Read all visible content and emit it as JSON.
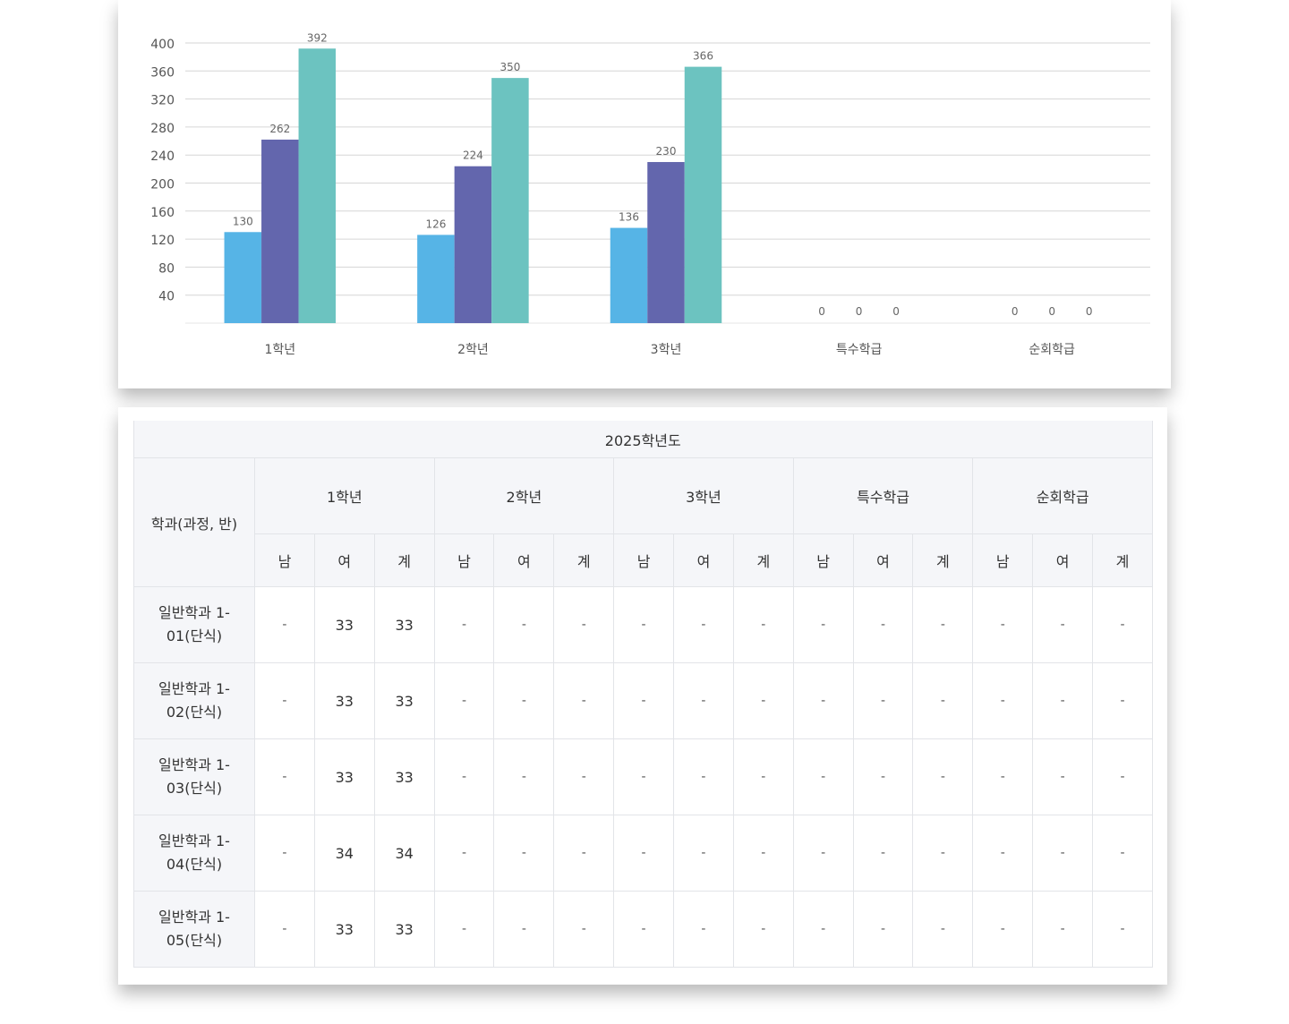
{
  "chart_data": {
    "type": "bar",
    "categories": [
      "1학년",
      "2학년",
      "3학년",
      "특수학급",
      "순회학급"
    ],
    "series": [
      {
        "values": [
          130,
          126,
          136,
          0,
          0
        ],
        "color": "#56b4e6"
      },
      {
        "values": [
          262,
          224,
          230,
          0,
          0
        ],
        "color": "#6366ad"
      },
      {
        "values": [
          392,
          350,
          366,
          0,
          0
        ],
        "color": "#6cc3c0"
      }
    ],
    "yticks": [
      40,
      80,
      120,
      160,
      200,
      240,
      280,
      320,
      360,
      400
    ],
    "ylim": [
      0,
      400
    ],
    "grid": true,
    "data_labels": true
  },
  "table": {
    "year": "2025학년도",
    "rowhead_label": "학과(과정, 반)",
    "groups": [
      "1학년",
      "2학년",
      "3학년",
      "특수학급",
      "순회학급"
    ],
    "genders": [
      "남",
      "여",
      "계"
    ],
    "rows": [
      {
        "name": "일반학과 1-01(단식)",
        "cells": [
          "-",
          "33",
          "33",
          "-",
          "-",
          "-",
          "-",
          "-",
          "-",
          "-",
          "-",
          "-",
          "-",
          "-",
          "-"
        ]
      },
      {
        "name": "일반학과 1-02(단식)",
        "cells": [
          "-",
          "33",
          "33",
          "-",
          "-",
          "-",
          "-",
          "-",
          "-",
          "-",
          "-",
          "-",
          "-",
          "-",
          "-"
        ]
      },
      {
        "name": "일반학과 1-03(단식)",
        "cells": [
          "-",
          "33",
          "33",
          "-",
          "-",
          "-",
          "-",
          "-",
          "-",
          "-",
          "-",
          "-",
          "-",
          "-",
          "-"
        ]
      },
      {
        "name": "일반학과 1-04(단식)",
        "cells": [
          "-",
          "34",
          "34",
          "-",
          "-",
          "-",
          "-",
          "-",
          "-",
          "-",
          "-",
          "-",
          "-",
          "-",
          "-"
        ]
      },
      {
        "name": "일반학과 1-05(단식)",
        "cells": [
          "-",
          "33",
          "33",
          "-",
          "-",
          "-",
          "-",
          "-",
          "-",
          "-",
          "-",
          "-",
          "-",
          "-",
          "-"
        ]
      }
    ]
  }
}
